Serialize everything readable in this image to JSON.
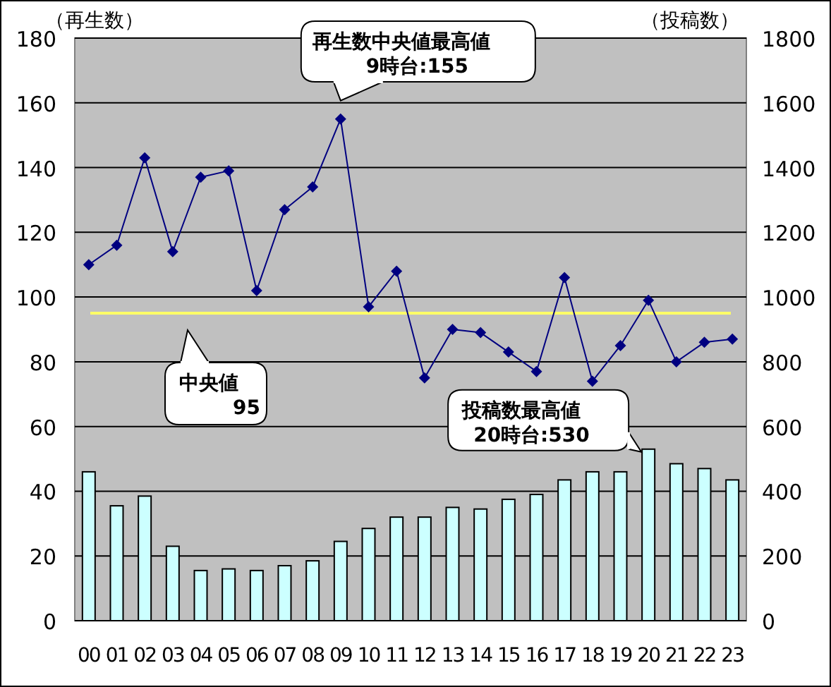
{
  "chart_data": {
    "type": "bar",
    "categories": [
      "00",
      "01",
      "02",
      "03",
      "04",
      "05",
      "06",
      "07",
      "08",
      "09",
      "10",
      "11",
      "12",
      "13",
      "14",
      "15",
      "16",
      "17",
      "18",
      "19",
      "20",
      "21",
      "22",
      "23"
    ],
    "series": [
      {
        "axis": "y2",
        "color": "#ccffff",
        "values": [
          460,
          355,
          385,
          230,
          155,
          160,
          155,
          170,
          185,
          245,
          285,
          320,
          320,
          350,
          345,
          375,
          390,
          435,
          460,
          460,
          530,
          485,
          470,
          435
        ]
      },
      {
        "type": "line",
        "color": "#000080",
        "values": [
          110,
          116,
          143,
          114,
          137,
          139,
          102,
          127,
          134,
          155,
          97,
          108,
          75,
          90,
          89,
          83,
          77,
          106,
          74,
          85,
          99,
          80,
          86,
          87
        ]
      }
    ],
    "marker": "diamond",
    "ylabel": "（再生数）",
    "y2label": "（投稿数）",
    "ylim": [
      0,
      180
    ],
    "yticks": [
      0,
      20,
      40,
      60,
      80,
      100,
      120,
      140,
      160,
      180
    ],
    "y2lim": [
      0,
      1800
    ],
    "y2ticks": [
      0,
      200,
      400,
      600,
      800,
      1000,
      1200,
      1400,
      1600,
      1800
    ],
    "grid": "y",
    "ref_lines": [
      {
        "axis": "y",
        "value": 95,
        "label": "中央値\n95",
        "color": "#ffff66"
      }
    ],
    "annotations": [
      {
        "text": "再生数中央値最高値\n9時台:155",
        "x": "09",
        "y": 155
      },
      "投稿数最高値\n20時台:530"
    ]
  }
}
